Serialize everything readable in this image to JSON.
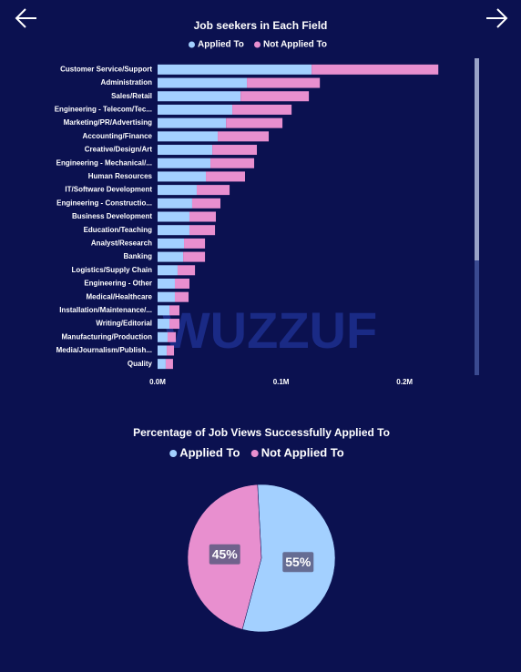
{
  "watermark": "WUZZUF",
  "chart_data": [
    {
      "type": "bar",
      "orientation": "horizontal",
      "stacked": true,
      "title": "Job seekers in Each Field",
      "categories": [
        "Customer Service/Support",
        "Administration",
        "Sales/Retail",
        "Engineering - Telecom/Tec...",
        "Marketing/PR/Advertising",
        "Accounting/Finance",
        "Creative/Design/Art",
        "Engineering - Mechanical/...",
        "Human Resources",
        "IT/Software Development",
        "Engineering - Constructio...",
        "Business Development",
        "Education/Teaching",
        "Analyst/Research",
        "Banking",
        "Logistics/Supply Chain",
        "Engineering - Other",
        "Medical/Healthcare",
        "Installation/Maintenance/...",
        "Writing/Editorial",
        "Manufacturing/Production",
        "Media/Journalism/Publish...",
        "Quality"
      ],
      "series": [
        {
          "name": "Applied To",
          "color": "#a3d0ff",
          "values": [
            124700,
            72300,
            67200,
            60500,
            55400,
            48700,
            44300,
            42800,
            39100,
            31700,
            28000,
            25800,
            25800,
            21400,
            20700,
            16200,
            14000,
            14000,
            9600,
            9600,
            8100,
            7400,
            6600
          ]
        },
        {
          "name": "Not Applied To",
          "color": "#e88fcf",
          "values": [
            102600,
            59100,
            55300,
            48000,
            45700,
            41300,
            36100,
            35400,
            31700,
            26600,
            22900,
            21400,
            20700,
            17000,
            17700,
            14100,
            11800,
            11100,
            8100,
            8100,
            6700,
            5900,
            5900
          ]
        }
      ],
      "xlim": [
        0,
        250000
      ],
      "xticks": [
        {
          "value": 0,
          "label": "0.0M"
        },
        {
          "value": 100000,
          "label": "0.1M"
        },
        {
          "value": 200000,
          "label": "0.2M"
        }
      ],
      "legend": "top"
    },
    {
      "type": "pie",
      "title": "Percentage of Job Views Successfully Applied To",
      "categories": [
        "Applied To",
        "Not Applied To"
      ],
      "values": [
        55,
        45
      ],
      "value_labels": [
        "55%",
        "45%"
      ],
      "colors": [
        "#a3d0ff",
        "#e88fcf"
      ],
      "legend": "top"
    }
  ]
}
